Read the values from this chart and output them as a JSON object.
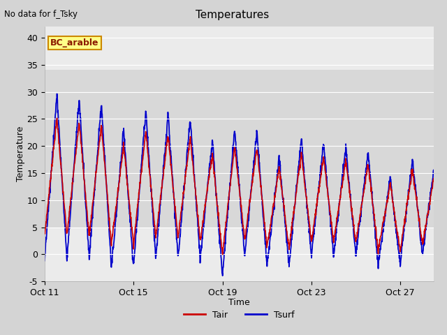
{
  "title": "Temperatures",
  "xlabel": "Time",
  "ylabel": "Temperature",
  "top_left_text": "No data for f_Tsky",
  "box_label": "BC_arable",
  "ylim": [
    -5,
    42
  ],
  "yticks": [
    -5,
    0,
    5,
    10,
    15,
    20,
    25,
    30,
    35,
    40
  ],
  "xtick_labels": [
    "Oct 11",
    "Oct 15",
    "Oct 19",
    "Oct 23",
    "Oct 27"
  ],
  "xtick_positions": [
    0,
    4,
    8,
    12,
    16
  ],
  "xlim": [
    0,
    17.5
  ],
  "fig_bg_color": "#d4d4d4",
  "plot_bg_color": "#ebebeb",
  "plot_bg_dark_color": "#d8d8d8",
  "line_color_tair": "#cc0000",
  "line_color_tsurf": "#0000cc",
  "legend_labels": [
    "Tair",
    "Tsurf"
  ],
  "n_points": 1680
}
